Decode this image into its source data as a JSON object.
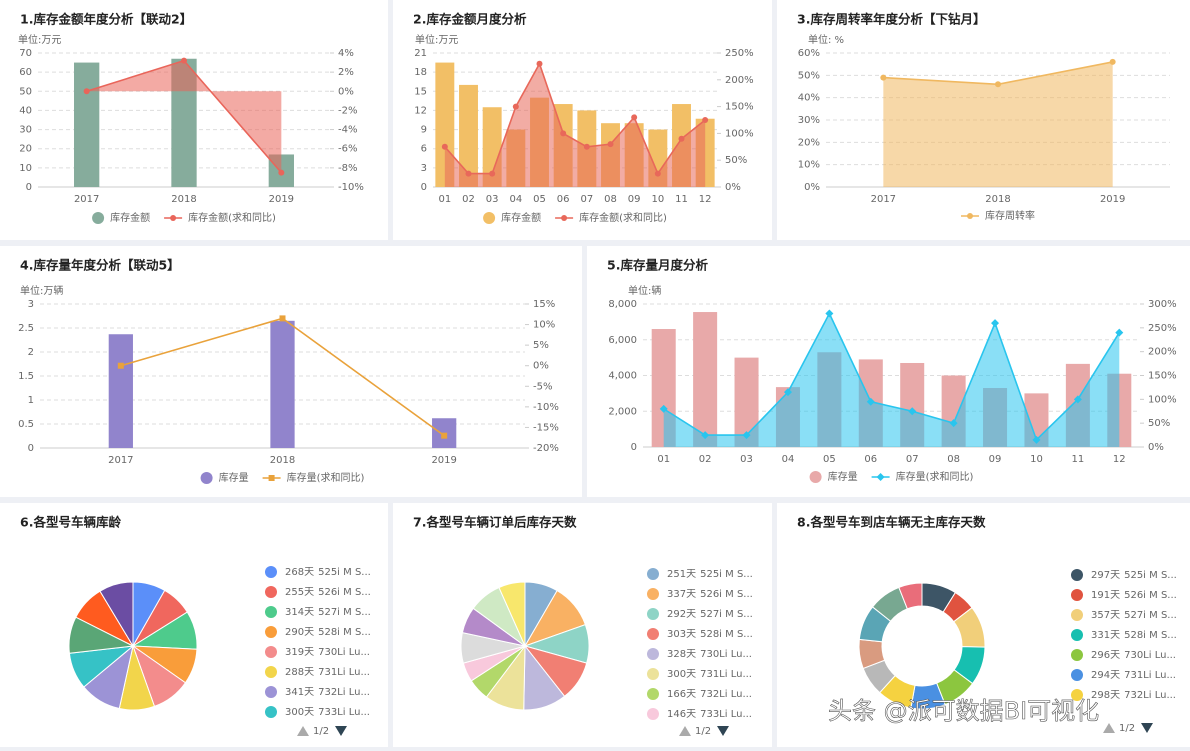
{
  "chart_data": [
    {
      "type": "combo",
      "title": "1.库存金额年度分析【联动2】",
      "unit": "单位:万元",
      "categories": [
        "2017",
        "2018",
        "2019"
      ],
      "ylim": [
        0,
        70
      ],
      "yticks": [
        0,
        10,
        20,
        30,
        40,
        50,
        60,
        70
      ],
      "y2lim": [
        -10,
        4
      ],
      "y2ticks": [
        {
          "value": -10,
          "label": "-10%"
        },
        {
          "value": -8,
          "label": "-8%"
        },
        {
          "value": -6,
          "label": "-6%"
        },
        {
          "value": -4,
          "label": "-4%"
        },
        {
          "value": -2,
          "label": "-2%"
        },
        {
          "value": 0,
          "label": "0%"
        },
        {
          "value": 2,
          "label": "2%"
        },
        {
          "value": 4,
          "label": "4%"
        }
      ],
      "grid": true,
      "series": [
        {
          "name": "库存金额",
          "kind": "bar",
          "color": "#86ac9c",
          "values": [
            65,
            67,
            17
          ]
        },
        {
          "name": "库存金额(求和同比)",
          "kind": "line",
          "axis": "y2",
          "area": true,
          "marker": "circle",
          "color": "#e9655a",
          "values": [
            0,
            3.2,
            -8.5
          ]
        }
      ]
    },
    {
      "type": "combo",
      "title": "2.库存金额月度分析",
      "unit": "单位:万元",
      "categories": [
        "01",
        "02",
        "03",
        "04",
        "05",
        "06",
        "07",
        "08",
        "09",
        "10",
        "11",
        "12"
      ],
      "ylim": [
        0,
        21
      ],
      "yticks": [
        0,
        3,
        6,
        9,
        12,
        15,
        18,
        21
      ],
      "y2lim": [
        0,
        250
      ],
      "y2ticks": [
        {
          "value": 0,
          "label": "0%"
        },
        {
          "value": 50,
          "label": "50%"
        },
        {
          "value": 100,
          "label": "100%"
        },
        {
          "value": 150,
          "label": "150%"
        },
        {
          "value": 200,
          "label": "200%"
        },
        {
          "value": 250,
          "label": "250%"
        }
      ],
      "grid": true,
      "series": [
        {
          "name": "库存金额",
          "kind": "bar",
          "color": "#f2bf66",
          "values": [
            19.5,
            16,
            12.5,
            9,
            14,
            13,
            12,
            10,
            10,
            9,
            13,
            10.7
          ]
        },
        {
          "name": "库存金额(求和同比)",
          "kind": "line",
          "axis": "y2",
          "area": true,
          "marker": "circle",
          "color": "#e8685a",
          "values": [
            75,
            25,
            25,
            150,
            230,
            100,
            75,
            80,
            130,
            25,
            90,
            125
          ]
        }
      ]
    },
    {
      "type": "area",
      "title": "3.库存周转率年度分析【下钻月】",
      "unit": "单位: %",
      "categories": [
        "2017",
        "2018",
        "2019"
      ],
      "ylim": [
        0,
        60
      ],
      "yticks": [
        {
          "value": 0,
          "label": "0%"
        },
        {
          "value": 10,
          "label": "10%"
        },
        {
          "value": 20,
          "label": "20%"
        },
        {
          "value": 30,
          "label": "30%"
        },
        {
          "value": 40,
          "label": "40%"
        },
        {
          "value": 50,
          "label": "50%"
        },
        {
          "value": 60,
          "label": "60%"
        }
      ],
      "grid": true,
      "series": [
        {
          "name": "库存周转率",
          "kind": "line",
          "area": true,
          "marker": "circle",
          "color": "#f0b860",
          "values": [
            49,
            46,
            56
          ]
        }
      ]
    },
    {
      "type": "combo",
      "title": "4.库存量年度分析【联动5】",
      "unit": "单位:万辆",
      "categories": [
        "2017",
        "2018",
        "2019"
      ],
      "ylim": [
        0,
        3
      ],
      "yticks": [
        0,
        0.5,
        1,
        1.5,
        2,
        2.5,
        3
      ],
      "y2lim": [
        -20,
        15
      ],
      "y2ticks": [
        {
          "value": -20,
          "label": "-20%"
        },
        {
          "value": -15,
          "label": "-15%"
        },
        {
          "value": -10,
          "label": "-10%"
        },
        {
          "value": -5,
          "label": "-5%"
        },
        {
          "value": 0,
          "label": "0%"
        },
        {
          "value": 5,
          "label": "5%"
        },
        {
          "value": 10,
          "label": "10%"
        },
        {
          "value": 15,
          "label": "15%"
        }
      ],
      "grid": true,
      "series": [
        {
          "name": "库存量",
          "kind": "bar",
          "color": "#9184cc",
          "values": [
            2.37,
            2.65,
            0.62
          ]
        },
        {
          "name": "库存量(求和同比)",
          "kind": "line",
          "axis": "y2",
          "area": false,
          "marker": "square",
          "color": "#e9a23b",
          "values": [
            0,
            11.5,
            -17
          ]
        }
      ]
    },
    {
      "type": "combo",
      "title": "5.库存量月度分析",
      "unit": "单位:辆",
      "categories": [
        "01",
        "02",
        "03",
        "04",
        "05",
        "06",
        "07",
        "08",
        "09",
        "10",
        "11",
        "12"
      ],
      "ylim": [
        0,
        8000
      ],
      "yticks": [
        0,
        {
          "value": 2000,
          "label": "2,000"
        },
        {
          "value": 4000,
          "label": "4,000"
        },
        {
          "value": 6000,
          "label": "6,000"
        },
        {
          "value": 8000,
          "label": "8,000"
        }
      ],
      "y2lim": [
        0,
        300
      ],
      "y2ticks": [
        {
          "value": 0,
          "label": "0%"
        },
        {
          "value": 50,
          "label": "50%"
        },
        {
          "value": 100,
          "label": "100%"
        },
        {
          "value": 150,
          "label": "150%"
        },
        {
          "value": 200,
          "label": "200%"
        },
        {
          "value": 250,
          "label": "250%"
        },
        {
          "value": 300,
          "label": "300%"
        }
      ],
      "grid": true,
      "series": [
        {
          "name": "库存量",
          "kind": "bar",
          "color": "#e8a9a9",
          "values": [
            6600,
            7550,
            5000,
            3350,
            5300,
            4900,
            4700,
            4000,
            3300,
            3000,
            4650,
            4100
          ]
        },
        {
          "name": "库存量(求和同比)",
          "kind": "line",
          "axis": "y2",
          "area": true,
          "marker": "diamond",
          "color": "#29c5ee",
          "values": [
            80,
            25,
            25,
            115,
            280,
            95,
            75,
            50,
            260,
            15,
            100,
            240
          ]
        }
      ]
    },
    {
      "type": "pie",
      "title": "6.各型号车辆库龄",
      "legend_page": "1/2",
      "categories": [
        "525i M S...",
        "526i M S...",
        "527i M S...",
        "528i M S...",
        "730Li Lu...",
        "731Li Lu...",
        "732Li Lu...",
        "733Li Lu...",
        null,
        null,
        null
      ],
      "values": [
        268,
        255,
        314,
        290,
        319,
        288,
        341,
        300,
        300,
        290,
        280
      ],
      "value_labels": [
        "268天",
        "255天",
        "314天",
        "290天",
        "319天",
        "288天",
        "341天",
        "300天",
        null,
        null,
        null
      ],
      "colors": [
        "#5b8ff9",
        "#f0675e",
        "#4ecb8c",
        "#f99d3a",
        "#f38c8c",
        "#f2d54b",
        "#9c93d6",
        "#36c2c6",
        "#5aa676",
        "#ff5b1f",
        "#6b4da3"
      ]
    },
    {
      "type": "pie",
      "title": "7.各型号车辆订单后库存天数",
      "legend_page": "1/2",
      "categories": [
        "525i M S...",
        "526i M S...",
        "527i M S...",
        "528i M S...",
        "730Li Lu...",
        "731Li Lu...",
        "732Li Lu...",
        "733Li Lu...",
        null,
        null,
        null,
        null
      ],
      "values": [
        251,
        337,
        292,
        303,
        328,
        300,
        166,
        146,
        230,
        200,
        250,
        200
      ],
      "value_labels": [
        "251天",
        "337天",
        "292天",
        "303天",
        "328天",
        "300天",
        "166天",
        "146天",
        null,
        null,
        null,
        null
      ],
      "colors": [
        "#86aed1",
        "#f9b163",
        "#8ed4c6",
        "#f17f73",
        "#bdb8dc",
        "#ece29a",
        "#b2d86a",
        "#f8c9dc",
        "#dcdcdc",
        "#b48ac9",
        "#cfe9c4",
        "#f8e76c"
      ]
    },
    {
      "type": "donut",
      "title": "8.各型号车到店车辆无主库存天数",
      "legend_page": "1/2",
      "categories": [
        "525i M S...",
        "526i M S...",
        "527i M S...",
        "528i M S...",
        "730Li Lu...",
        "731Li Lu...",
        "732Li Lu...",
        null,
        null,
        null,
        null,
        null
      ],
      "values": [
        297,
        191,
        357,
        331,
        296,
        294,
        298,
        250,
        250,
        300,
        280,
        200
      ],
      "value_labels": [
        "297天",
        "191天",
        "357天",
        "331天",
        "296天",
        "294天",
        "298天",
        null,
        null,
        null,
        null,
        null
      ],
      "colors": [
        "#3d5566",
        "#e0533f",
        "#f1cf7a",
        "#17bfb0",
        "#8cc63f",
        "#4a90e2",
        "#f5d240",
        "#b8b8b8",
        "#d99b80",
        "#5aa5b5",
        "#78a891",
        "#e96d7a"
      ]
    }
  ],
  "watermark": "头条 @派可数据BI可视化"
}
